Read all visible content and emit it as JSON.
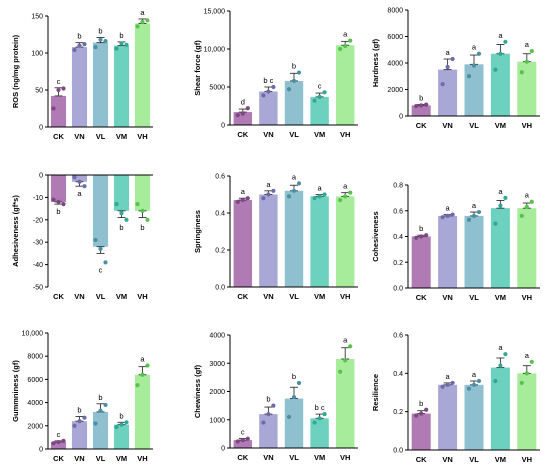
{
  "colors": {
    "CK": "#b07ab5",
    "VN": "#a8a7d6",
    "VL": "#8fc0cf",
    "VM": "#6dd1bf",
    "VH": "#a6ec9b",
    "CK_point": "#7e4784",
    "VN_point": "#6e6ba9",
    "VL_point": "#4a8fa3",
    "VM_point": "#2fa894",
    "VH_point": "#59c14d"
  },
  "chart_data": [
    {
      "type": "bar",
      "categories": [
        "CK",
        "VN",
        "VL",
        "VM",
        "VH"
      ],
      "ylabel": "ROS (ng/mg protein)",
      "ylim": [
        0,
        150
      ],
      "yticks": [
        "0",
        "50",
        "100",
        "150"
      ],
      "values": [
        42,
        108,
        114,
        110,
        140
      ],
      "errors": [
        11,
        6,
        7,
        5,
        6
      ],
      "points": [
        [
          25,
          50,
          52
        ],
        [
          104,
          110,
          112
        ],
        [
          108,
          118,
          116
        ],
        [
          106,
          113,
          111
        ],
        [
          136,
          142,
          144
        ]
      ],
      "letters": [
        "c",
        "b",
        "b",
        "b",
        "a"
      ]
    },
    {
      "type": "bar",
      "categories": [
        "CK",
        "VN",
        "VL",
        "VM",
        "VH"
      ],
      "ylabel": "Shear force (gf)",
      "ylim": [
        0,
        15000
      ],
      "yticks": [
        "0",
        "5000",
        "10,000",
        "15,000"
      ],
      "values": [
        1700,
        4400,
        5800,
        3700,
        10500
      ],
      "errors": [
        400,
        600,
        1000,
        500,
        500
      ],
      "points": [
        [
          1300,
          1500,
          2200
        ],
        [
          3900,
          4400,
          5000
        ],
        [
          4700,
          5800,
          6900
        ],
        [
          3200,
          3700,
          4300
        ],
        [
          10000,
          10400,
          11100
        ]
      ],
      "letters": [
        "d",
        "b c",
        "b",
        "c",
        "a"
      ]
    },
    {
      "type": "bar",
      "categories": [
        "CK",
        "VN",
        "VL",
        "VM",
        "VH"
      ],
      "ylabel": "Hardness (gf)",
      "ylim": [
        0,
        8000
      ],
      "yticks": [
        "0",
        "2000",
        "4000",
        "6000",
        "8000"
      ],
      "values": [
        800,
        3500,
        3900,
        4700,
        4100
      ],
      "errors": [
        60,
        800,
        700,
        700,
        600
      ],
      "points": [
        [
          750,
          800,
          860
        ],
        [
          2400,
          3700,
          4300
        ],
        [
          3000,
          3800,
          4700
        ],
        [
          3500,
          4700,
          5600
        ],
        [
          3300,
          4100,
          4900
        ]
      ],
      "letters": [
        "b",
        "a",
        "a",
        "a",
        "a"
      ]
    },
    {
      "type": "bar",
      "categories": [
        "CK",
        "VN",
        "VL",
        "VM",
        "VH"
      ],
      "ylabel": "Adhesiveness (gf*s)",
      "ylim": [
        -50,
        0
      ],
      "yticks": [
        "0",
        "-10",
        "-20",
        "-30",
        "-40",
        "-50"
      ],
      "values": [
        -12,
        -3,
        -32,
        -16,
        -16
      ],
      "errors": [
        1,
        2,
        3,
        3,
        3
      ],
      "points": [
        [
          -11,
          -12,
          -13
        ],
        [
          -1,
          -3,
          -5
        ],
        [
          -29,
          -33,
          -39
        ],
        [
          -13,
          -17,
          -20
        ],
        [
          -13,
          -16,
          -20
        ]
      ],
      "letters": [
        "b",
        "a",
        "c",
        "b",
        "b"
      ]
    },
    {
      "type": "bar",
      "categories": [
        "CK",
        "VN",
        "VL",
        "VM",
        "VH"
      ],
      "ylabel": "Springiness",
      "ylim": [
        0,
        0.6
      ],
      "yticks": [
        "0.0",
        "0.2",
        "0.4",
        "0.6"
      ],
      "values": [
        0.47,
        0.5,
        0.52,
        0.49,
        0.49
      ],
      "errors": [
        0.01,
        0.02,
        0.03,
        0.01,
        0.02
      ],
      "points": [
        [
          0.46,
          0.47,
          0.48
        ],
        [
          0.48,
          0.5,
          0.52
        ],
        [
          0.49,
          0.52,
          0.56
        ],
        [
          0.48,
          0.49,
          0.5
        ],
        [
          0.47,
          0.49,
          0.51
        ]
      ],
      "letters": [
        "a",
        "a",
        "a",
        "a",
        "a"
      ]
    },
    {
      "type": "bar",
      "categories": [
        "CK",
        "VN",
        "VL",
        "VM",
        "VH"
      ],
      "ylabel": "Cohesiveness",
      "ylim": [
        0,
        0.8
      ],
      "yticks": [
        "0.0",
        "0.2",
        "0.4",
        "0.6",
        "0.8"
      ],
      "values": [
        0.4,
        0.56,
        0.56,
        0.62,
        0.62
      ],
      "errors": [
        0.01,
        0.01,
        0.03,
        0.06,
        0.04
      ],
      "points": [
        [
          0.39,
          0.4,
          0.41
        ],
        [
          0.55,
          0.56,
          0.57
        ],
        [
          0.53,
          0.56,
          0.59
        ],
        [
          0.5,
          0.64,
          0.7
        ],
        [
          0.56,
          0.63,
          0.67
        ]
      ],
      "letters": [
        "b",
        "a",
        "a",
        "a",
        "a"
      ]
    },
    {
      "type": "bar",
      "categories": [
        "CK",
        "VN",
        "VL",
        "VM",
        "VH"
      ],
      "ylabel": "Gummniness (gf)",
      "ylim": [
        0,
        10000
      ],
      "yticks": [
        "0",
        "2000",
        "4000",
        "6000",
        "8000",
        "10,000"
      ],
      "values": [
        600,
        2400,
        3200,
        2100,
        6400
      ],
      "errors": [
        100,
        400,
        700,
        200,
        700
      ],
      "points": [
        [
          500,
          600,
          700
        ],
        [
          2000,
          2400,
          2700
        ],
        [
          2200,
          3300,
          3800
        ],
        [
          1900,
          2100,
          2300
        ],
        [
          5500,
          6400,
          7200
        ]
      ],
      "letters": [
        "c",
        "b",
        "b",
        "b",
        "a"
      ]
    },
    {
      "type": "bar",
      "categories": [
        "CK",
        "VN",
        "VL",
        "VM",
        "VH"
      ],
      "ylabel": "Chewiness (gf)",
      "ylim": [
        0,
        4000
      ],
      "yticks": [
        "0",
        "1000",
        "2000",
        "3000",
        "4000"
      ],
      "values": [
        280,
        1200,
        1750,
        1050,
        3150
      ],
      "errors": [
        60,
        250,
        400,
        150,
        400
      ],
      "points": [
        [
          230,
          280,
          330
        ],
        [
          900,
          1200,
          1500
        ],
        [
          1100,
          1800,
          2300
        ],
        [
          900,
          1050,
          1200
        ],
        [
          2700,
          3100,
          3600
        ]
      ],
      "letters": [
        "c",
        "b",
        "b",
        "b c",
        "a"
      ]
    },
    {
      "type": "bar",
      "categories": [
        "CK",
        "VN",
        "VL",
        "VM",
        "VH"
      ],
      "ylabel": "Resilience",
      "ylim": [
        0,
        0.6
      ],
      "yticks": [
        "0.0",
        "0.2",
        "0.4",
        "0.6"
      ],
      "values": [
        0.19,
        0.34,
        0.34,
        0.43,
        0.4
      ],
      "errors": [
        0.015,
        0.01,
        0.02,
        0.05,
        0.04
      ],
      "points": [
        [
          0.18,
          0.19,
          0.21
        ],
        [
          0.33,
          0.34,
          0.35
        ],
        [
          0.32,
          0.34,
          0.36
        ],
        [
          0.36,
          0.44,
          0.5
        ],
        [
          0.35,
          0.4,
          0.46
        ]
      ],
      "letters": [
        "b",
        "a",
        "a",
        "a",
        "a"
      ]
    }
  ]
}
